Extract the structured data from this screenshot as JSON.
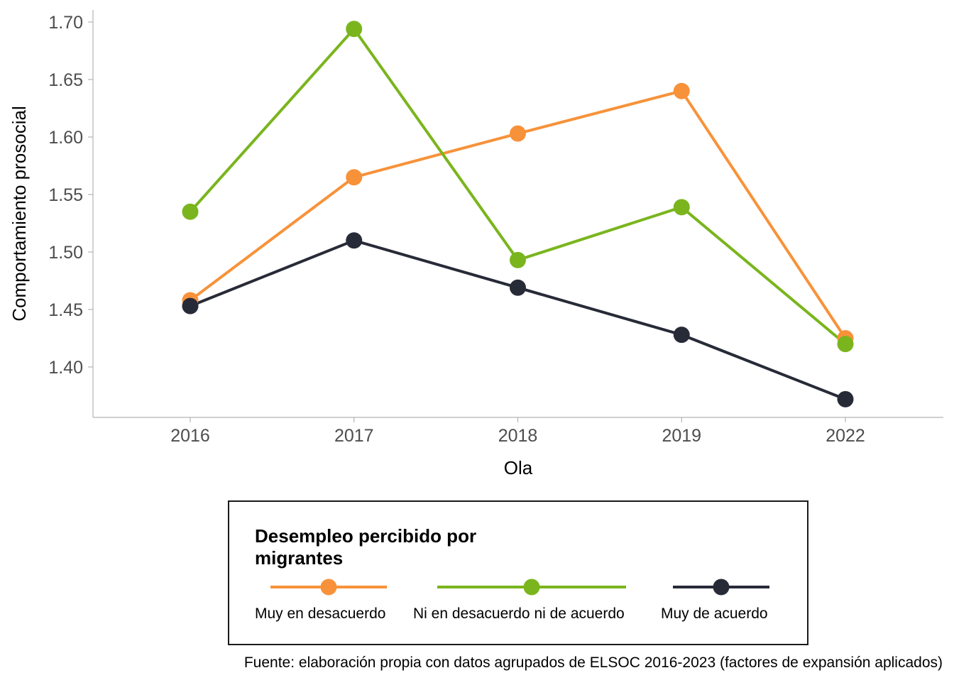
{
  "chart_data": {
    "type": "line",
    "x_label": "Ola",
    "y_label": "Comportamiento prosocial",
    "categories": [
      "2016",
      "2017",
      "2018",
      "2019",
      "2022"
    ],
    "y_ticks": [
      "1.40",
      "1.45",
      "1.50",
      "1.55",
      "1.60",
      "1.65",
      "1.70"
    ],
    "ylim": [
      1.355,
      1.71
    ],
    "grid": false,
    "legend": {
      "title_line1": "Desempleo percibido por",
      "title_line2": "migrantes",
      "placement": "bottom"
    },
    "series": [
      {
        "name": "Muy en desacuerdo",
        "color": "#F7923A",
        "values": [
          1.458,
          1.565,
          1.603,
          1.64,
          1.425
        ]
      },
      {
        "name": "Ni en desacuerdo ni de acuerdo",
        "color": "#7AB51D",
        "values": [
          1.535,
          1.694,
          1.493,
          1.539,
          1.42
        ]
      },
      {
        "name": "Muy de acuerdo",
        "color": "#272A37",
        "values": [
          1.453,
          1.51,
          1.469,
          1.428,
          1.372
        ]
      }
    ],
    "caption": "Fuente: elaboración propia con datos agrupados de ELSOC 2016-2023 (factores de expansión aplicados)"
  }
}
